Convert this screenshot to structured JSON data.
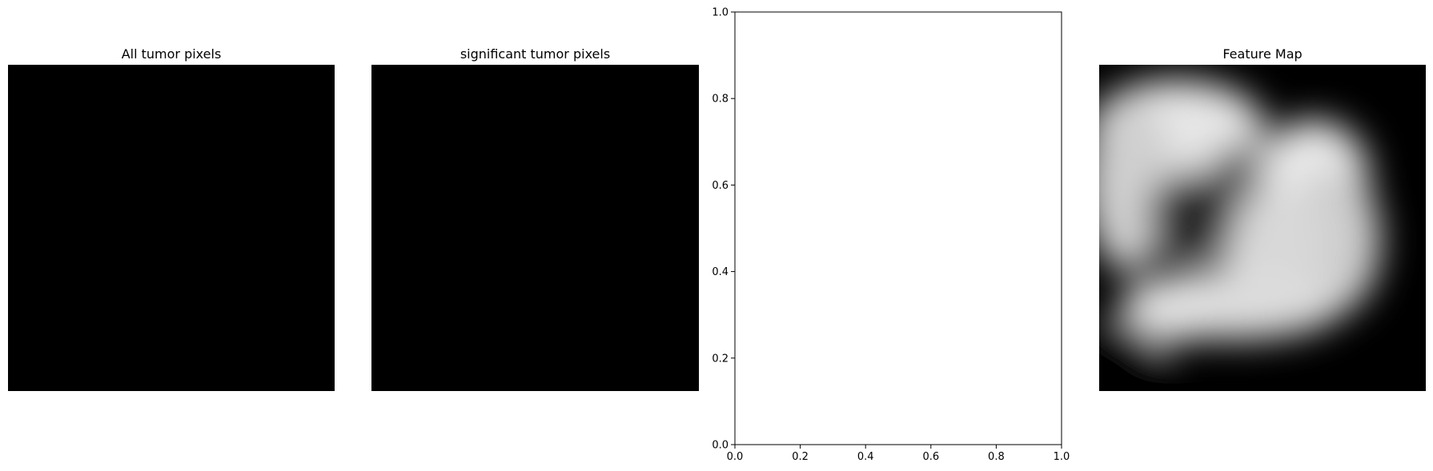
{
  "chart_data": [
    {
      "type": "image",
      "title": "All tumor pixels",
      "content": "solid black image"
    },
    {
      "type": "image",
      "title": "significant tumor pixels",
      "content": "solid black image"
    },
    {
      "type": "scatter",
      "title": "",
      "xlabel": "",
      "ylabel": "",
      "xlim": [
        0.0,
        1.0
      ],
      "ylim": [
        0.0,
        1.0
      ],
      "xticks": [
        "0.0",
        "0.2",
        "0.4",
        "0.6",
        "0.8",
        "1.0"
      ],
      "yticks": [
        "0.0",
        "0.2",
        "0.4",
        "0.6",
        "0.8",
        "1.0"
      ],
      "series": [],
      "grid": false
    },
    {
      "type": "heatmap",
      "title": "Feature Map",
      "colormap": "gray",
      "content": "blurred grayscale feature map"
    }
  ]
}
